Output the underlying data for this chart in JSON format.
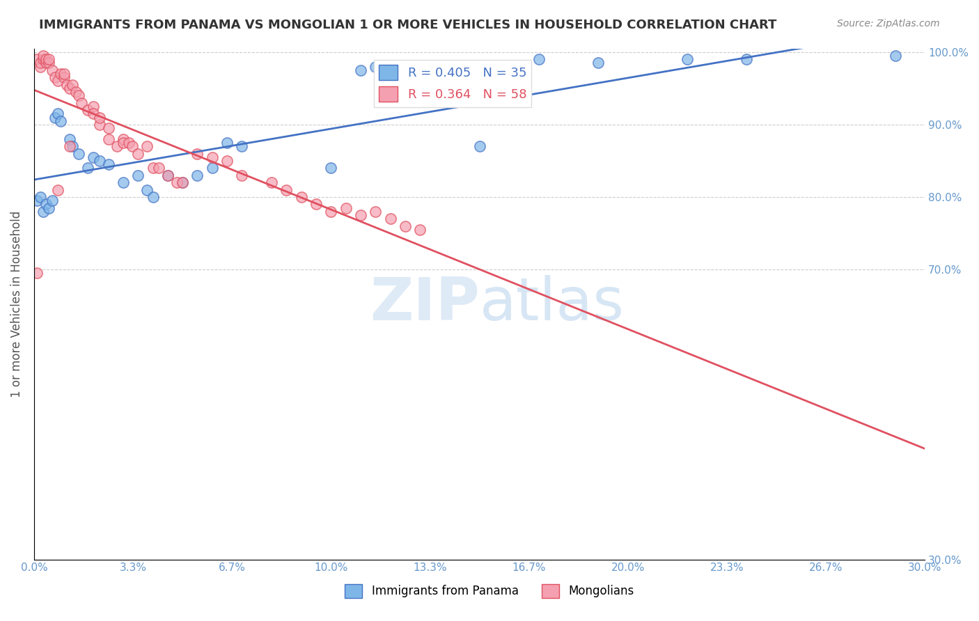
{
  "title": "IMMIGRANTS FROM PANAMA VS MONGOLIAN 1 OR MORE VEHICLES IN HOUSEHOLD CORRELATION CHART",
  "source": "Source: ZipAtlas.com",
  "ylabel": "1 or more Vehicles in Household",
  "xmin": 0.0,
  "xmax": 0.3,
  "ymin": 0.3,
  "ymax": 1.005,
  "legend_blue_r": "0.405",
  "legend_blue_n": "35",
  "legend_pink_r": "0.364",
  "legend_pink_n": "58",
  "color_blue": "#7EB6E8",
  "color_pink": "#F4A0B0",
  "color_blue_line": "#4472C4",
  "color_pink_line": "#E05060",
  "color_title": "#333333",
  "color_source": "#888888",
  "color_legend_text_blue": "#4472C4",
  "color_legend_text_pink": "#E05060",
  "color_axis_label": "#555555",
  "color_right_axis": "#6699CC",
  "color_grid": "#CCCCCC",
  "watermark_zip": "ZIP",
  "watermark_atlas": "atlas",
  "blue_x": [
    0.001,
    0.002,
    0.003,
    0.004,
    0.005,
    0.006,
    0.007,
    0.008,
    0.009,
    0.012,
    0.013,
    0.015,
    0.018,
    0.02,
    0.022,
    0.025,
    0.03,
    0.035,
    0.038,
    0.04,
    0.045,
    0.05,
    0.055,
    0.06,
    0.065,
    0.07,
    0.1,
    0.11,
    0.115,
    0.15,
    0.17,
    0.19,
    0.22,
    0.24,
    0.29
  ],
  "blue_y": [
    0.795,
    0.8,
    0.78,
    0.79,
    0.785,
    0.795,
    0.91,
    0.915,
    0.905,
    0.88,
    0.87,
    0.86,
    0.84,
    0.855,
    0.85,
    0.845,
    0.82,
    0.83,
    0.81,
    0.8,
    0.83,
    0.82,
    0.83,
    0.84,
    0.875,
    0.87,
    0.84,
    0.975,
    0.98,
    0.87,
    0.99,
    0.985,
    0.99,
    0.99,
    0.995
  ],
  "pink_x": [
    0.001,
    0.001,
    0.002,
    0.002,
    0.003,
    0.003,
    0.004,
    0.004,
    0.005,
    0.005,
    0.006,
    0.007,
    0.008,
    0.009,
    0.01,
    0.01,
    0.011,
    0.012,
    0.013,
    0.014,
    0.015,
    0.016,
    0.018,
    0.02,
    0.02,
    0.022,
    0.022,
    0.025,
    0.025,
    0.028,
    0.03,
    0.03,
    0.032,
    0.033,
    0.035,
    0.038,
    0.04,
    0.042,
    0.045,
    0.048,
    0.05,
    0.055,
    0.06,
    0.065,
    0.07,
    0.08,
    0.085,
    0.09,
    0.095,
    0.1,
    0.105,
    0.11,
    0.115,
    0.12,
    0.125,
    0.13,
    0.008,
    0.012
  ],
  "pink_y": [
    0.695,
    0.99,
    0.98,
    0.985,
    0.99,
    0.995,
    0.985,
    0.99,
    0.985,
    0.99,
    0.975,
    0.965,
    0.96,
    0.97,
    0.965,
    0.97,
    0.955,
    0.95,
    0.955,
    0.945,
    0.94,
    0.93,
    0.92,
    0.925,
    0.915,
    0.9,
    0.91,
    0.895,
    0.88,
    0.87,
    0.88,
    0.875,
    0.875,
    0.87,
    0.86,
    0.87,
    0.84,
    0.84,
    0.83,
    0.82,
    0.82,
    0.86,
    0.855,
    0.85,
    0.83,
    0.82,
    0.81,
    0.8,
    0.79,
    0.78,
    0.785,
    0.775,
    0.78,
    0.77,
    0.76,
    0.755,
    0.81,
    0.87
  ]
}
